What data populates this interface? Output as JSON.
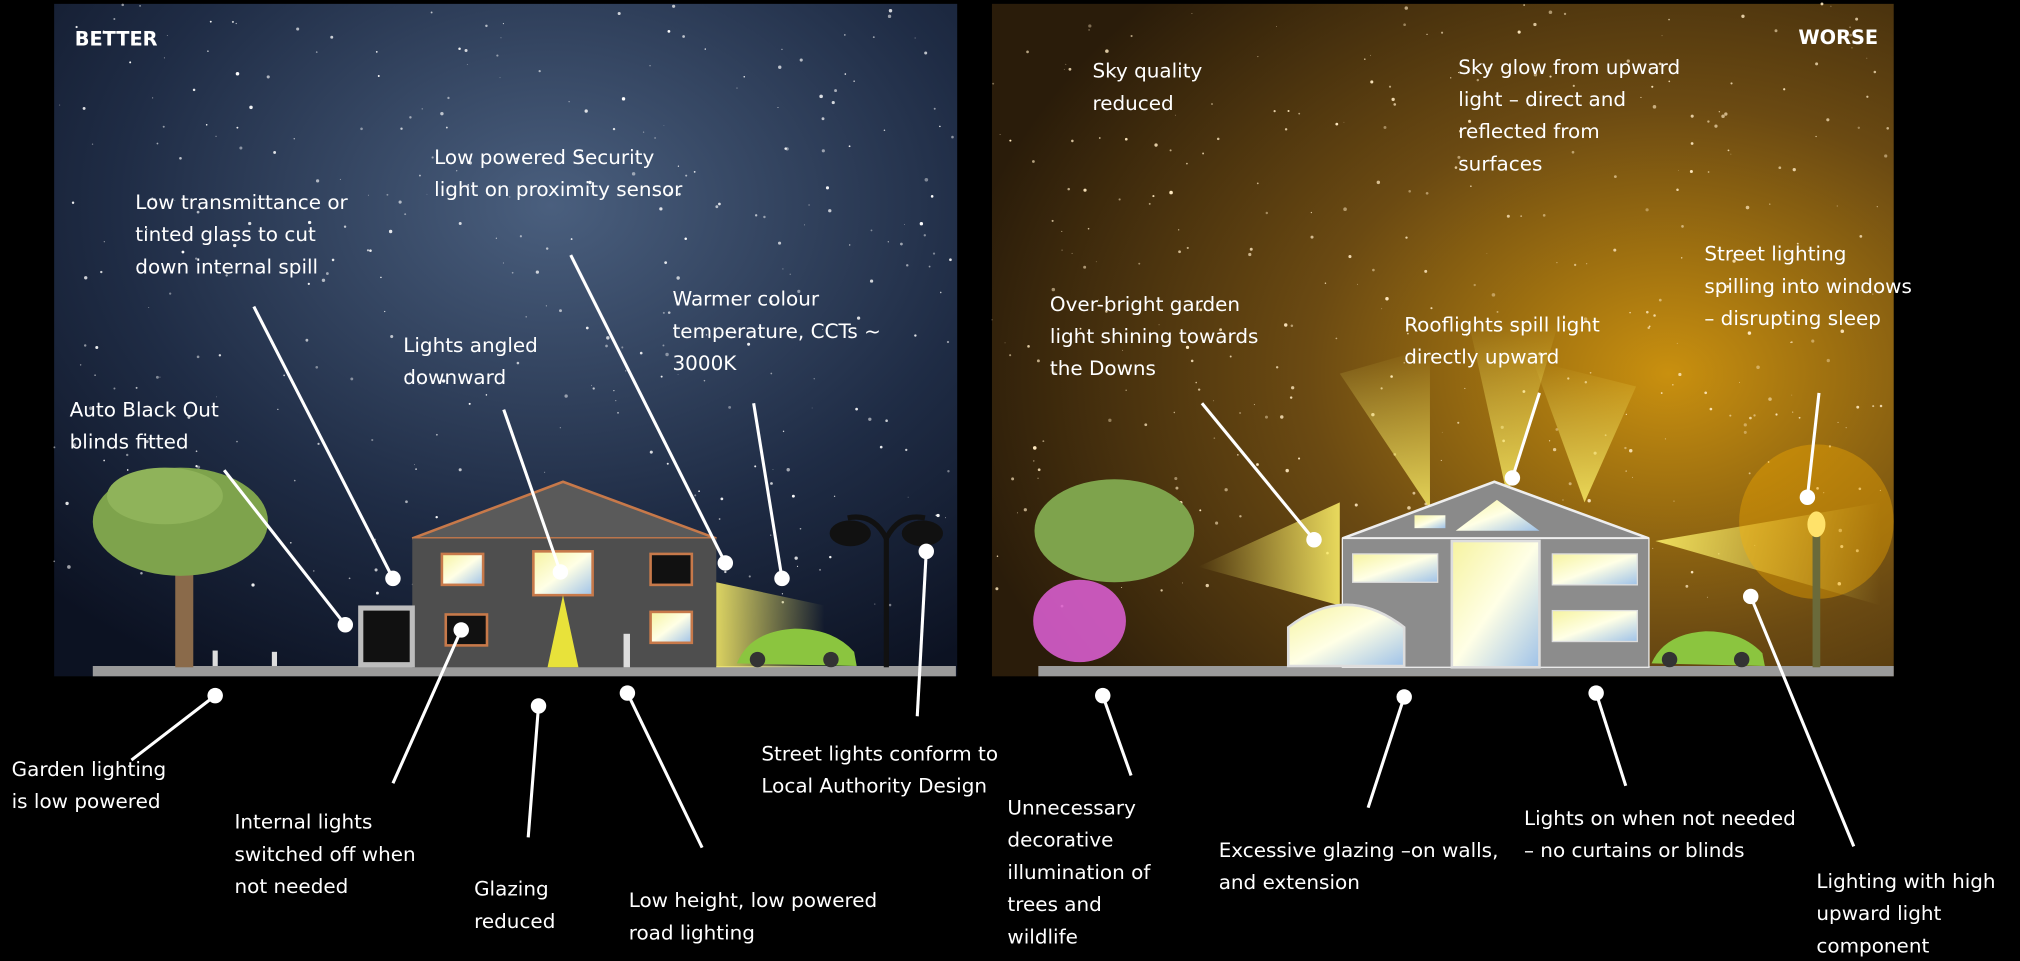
{
  "panels": [
    {
      "label": "BETTER",
      "annotations": [
        {
          "lines": [
            "Low powered Security",
            "light on proximity sensor"
          ]
        },
        {
          "lines": [
            "Low transmittance or",
            "tinted glass to cut",
            "down internal spill"
          ]
        },
        {
          "lines": [
            "Warmer colour",
            "temperature, CCTs ~",
            "3000K"
          ]
        },
        {
          "lines": [
            "Lights angled",
            "downward"
          ]
        },
        {
          "lines": [
            "Auto Black Out",
            "blinds fitted"
          ]
        },
        {
          "lines": [
            "Garden lighting",
            "is low powered"
          ]
        },
        {
          "lines": [
            "Internal lights",
            "switched off when",
            "not needed"
          ]
        },
        {
          "lines": [
            "Glazing",
            "reduced"
          ]
        },
        {
          "lines": [
            "Low height, low powered",
            "road lighting"
          ]
        },
        {
          "lines": [
            "Street lights conform to",
            "Local Authority Design"
          ]
        }
      ]
    },
    {
      "label": "WORSE",
      "annotations": [
        {
          "lines": [
            "Sky quality",
            "reduced"
          ]
        },
        {
          "lines": [
            "Sky glow from upward",
            "light – direct and",
            "reflected from",
            "surfaces"
          ]
        },
        {
          "lines": [
            "Street lighting",
            "spilling into windows",
            "– disrupting sleep"
          ]
        },
        {
          "lines": [
            "Over-bright garden",
            "light shining towards",
            "the Downs"
          ]
        },
        {
          "lines": [
            "Rooflights spill light",
            "directly upward"
          ]
        },
        {
          "lines": [
            "Unnecessary",
            "decorative",
            "illumination of",
            "trees and",
            "wildlife"
          ]
        },
        {
          "lines": [
            "Excessive glazing –on walls,",
            "and extension"
          ]
        },
        {
          "lines": [
            "Lights on when not needed",
            "– no curtains or blinds"
          ]
        },
        {
          "lines": [
            "Lighting with high",
            "upward light",
            "component"
          ]
        }
      ]
    }
  ]
}
